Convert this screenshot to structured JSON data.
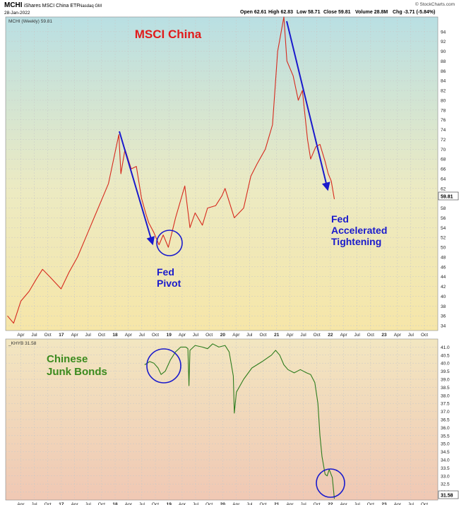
{
  "header": {
    "symbol": "MCHI",
    "name": "iShares MSCI China ETF",
    "exchange": "Nasdaq GM",
    "source": "© StockCharts.com",
    "date": "28-Jan-2022",
    "open": "Open 62.61",
    "high": "High 62.83",
    "low": "Low 58.71",
    "close": "Close 59.81",
    "volume": "Volume 28.8M",
    "chg": "Chg -3.71 (-5.84%)"
  },
  "colors": {
    "price_line": "#d62a1e",
    "junk_line": "#2e7d1e",
    "annotation": "#1a1acc",
    "title_red": "#e01b1b",
    "title_green": "#3b8a1e"
  },
  "chart_data": [
    {
      "type": "line",
      "legend": "MCHI (Weekly) 59.81",
      "title": "MSCI China",
      "last_value_label": "59.81",
      "ylim": [
        33,
        97
      ],
      "y_ticks": [
        34,
        36,
        38,
        40,
        42,
        44,
        46,
        48,
        50,
        52,
        54,
        56,
        58,
        60,
        62,
        64,
        66,
        68,
        70,
        72,
        74,
        76,
        78,
        80,
        82,
        84,
        86,
        88,
        90,
        92,
        94
      ],
      "x_ticks": [
        "Apr",
        "Jul",
        "Oct",
        "17",
        "Apr",
        "Jul",
        "Oct",
        "18",
        "Apr",
        "Jul",
        "Oct",
        "19",
        "Apr",
        "Jul",
        "Oct",
        "20",
        "Apr",
        "Jul",
        "Oct",
        "21",
        "Apr",
        "Jul",
        "Oct",
        "22",
        "Apr",
        "Jul",
        "Oct",
        "23",
        "Apr",
        "Jul",
        "Oct"
      ],
      "series": [
        {
          "x": [
            "2016-01-01",
            "2016-02-12",
            "2016-04-01",
            "2016-05-27",
            "2016-07-15",
            "2016-08-26",
            "2016-10-14",
            "2016-12-30",
            "2017-02-24",
            "2017-04-21",
            "2017-06-16",
            "2017-08-11",
            "2017-10-06",
            "2017-11-17",
            "2018-01-26",
            "2018-02-09",
            "2018-03-09",
            "2018-04-20",
            "2018-05-25",
            "2018-06-29",
            "2018-07-27",
            "2018-08-17",
            "2018-09-21",
            "2018-10-26",
            "2018-11-23",
            "2018-12-28",
            "2019-02-15",
            "2019-04-19",
            "2019-05-24",
            "2019-06-28",
            "2019-08-16",
            "2019-09-20",
            "2019-11-15",
            "2019-12-27",
            "2020-01-17",
            "2020-03-20",
            "2020-05-22",
            "2020-07-10",
            "2020-08-21",
            "2020-10-16",
            "2020-12-04",
            "2021-01-08",
            "2021-02-19",
            "2021-03-12",
            "2021-04-23",
            "2021-05-28",
            "2021-06-25",
            "2021-07-30",
            "2021-08-20",
            "2021-09-24",
            "2021-10-22",
            "2021-11-26",
            "2021-12-17",
            "2022-01-07",
            "2022-01-28"
          ],
          "values": [
            36.0,
            34.5,
            39.0,
            41.0,
            43.5,
            45.5,
            44.0,
            41.5,
            45.0,
            48.0,
            52.0,
            56.0,
            60.0,
            63.0,
            73.0,
            65.0,
            70.0,
            66.0,
            66.5,
            60.0,
            57.0,
            55.0,
            53.0,
            50.5,
            52.5,
            50.0,
            56.0,
            62.5,
            54.0,
            57.0,
            54.5,
            58.0,
            58.5,
            60.5,
            62.0,
            56.0,
            58.0,
            64.5,
            67.0,
            70.0,
            75.0,
            90.0,
            97.0,
            88.0,
            85.0,
            80.0,
            82.0,
            72.0,
            68.0,
            70.5,
            71.0,
            67.5,
            65.0,
            63.5,
            59.81
          ]
        }
      ]
    },
    {
      "type": "line",
      "legend": "_KHYB 31.58",
      "title": "Chinese Junk Bonds",
      "last_value_label": "31.58",
      "ylim": [
        31.5,
        41.5
      ],
      "y_ticks": [
        32.0,
        32.5,
        33.0,
        33.5,
        34.0,
        34.5,
        35.0,
        35.5,
        36.0,
        36.5,
        37.0,
        37.5,
        38.0,
        38.5,
        39.0,
        39.5,
        40.0,
        40.5,
        41.0
      ],
      "x_ticks": [
        "Apr",
        "Jul",
        "Oct",
        "17",
        "Apr",
        "Jul",
        "Oct",
        "18",
        "Apr",
        "Jul",
        "Oct",
        "19",
        "Apr",
        "Jul",
        "Oct",
        "20",
        "Apr",
        "Jul",
        "Oct",
        "21",
        "Apr",
        "Jul",
        "Oct",
        "22",
        "Apr",
        "Jul",
        "Oct",
        "23",
        "Apr",
        "Jul",
        "Oct"
      ],
      "series": [
        {
          "x": [
            "2018-07-20",
            "2018-08-24",
            "2018-09-21",
            "2018-10-19",
            "2018-11-09",
            "2018-12-07",
            "2019-01-11",
            "2019-02-15",
            "2019-03-22",
            "2019-04-26",
            "2019-05-10",
            "2019-05-17",
            "2019-05-24",
            "2019-06-28",
            "2019-08-16",
            "2019-09-20",
            "2019-10-25",
            "2019-12-06",
            "2020-01-17",
            "2020-02-14",
            "2020-03-13",
            "2020-03-20",
            "2020-04-03",
            "2020-05-22",
            "2020-07-17",
            "2020-09-25",
            "2020-11-27",
            "2020-12-25",
            "2021-01-22",
            "2021-02-19",
            "2021-03-19",
            "2021-04-30",
            "2021-06-11",
            "2021-07-23",
            "2021-08-20",
            "2021-09-17",
            "2021-10-08",
            "2021-10-22",
            "2021-11-05",
            "2021-11-26",
            "2021-12-10",
            "2021-12-24",
            "2022-01-14",
            "2022-01-28"
          ],
          "values": [
            39.9,
            40.1,
            40.0,
            39.7,
            39.3,
            39.5,
            40.2,
            40.7,
            41.0,
            41.0,
            40.9,
            38.6,
            40.8,
            41.1,
            41.0,
            40.9,
            41.2,
            41.0,
            41.1,
            40.7,
            39.2,
            36.9,
            38.2,
            39.0,
            39.7,
            40.1,
            40.5,
            40.8,
            40.5,
            39.9,
            39.6,
            39.4,
            39.6,
            39.4,
            39.3,
            38.8,
            37.5,
            35.5,
            34.2,
            33.1,
            33.0,
            33.4,
            32.9,
            31.58
          ]
        }
      ]
    }
  ],
  "annotations": {
    "fed_pivot_line1": "Fed",
    "fed_pivot_line2": "Pivot",
    "fed_tight_line1": "Fed",
    "fed_tight_line2": "Accelerated",
    "fed_tight_line3": "Tightening"
  }
}
